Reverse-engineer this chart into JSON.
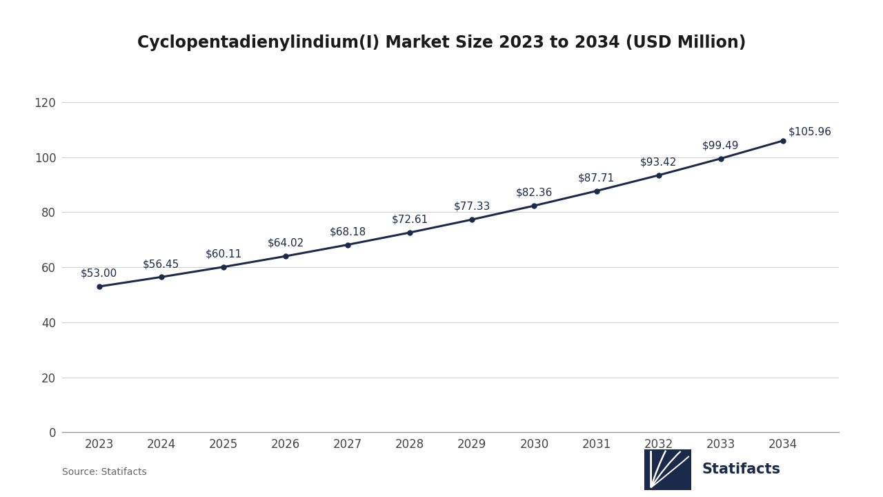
{
  "title_display": "Cyclopentadienylindium(I) Market Size 2023 to 2034 (USD Million)",
  "years": [
    2023,
    2024,
    2025,
    2026,
    2027,
    2028,
    2029,
    2030,
    2031,
    2032,
    2033,
    2034
  ],
  "values": [
    53.0,
    56.45,
    60.11,
    64.02,
    68.18,
    72.61,
    77.33,
    82.36,
    87.71,
    93.42,
    99.49,
    105.96
  ],
  "labels": [
    "$53.00",
    "$56.45",
    "$60.11",
    "$64.02",
    "$68.18",
    "$72.61",
    "$77.33",
    "$82.36",
    "$87.71",
    "$93.42",
    "$99.49",
    "$105.96"
  ],
  "line_color": "#1b2a4a",
  "marker_color": "#1b2a4a",
  "background_color": "#ffffff",
  "grid_color": "#d0d0d0",
  "ylim": [
    0,
    130
  ],
  "yticks": [
    0,
    20,
    40,
    60,
    80,
    100,
    120
  ],
  "title_fontsize": 17,
  "tick_fontsize": 12,
  "label_fontsize": 11,
  "source_text": "Source: Statifacts",
  "source_fontsize": 10,
  "line_width": 2.2,
  "marker_size": 5
}
